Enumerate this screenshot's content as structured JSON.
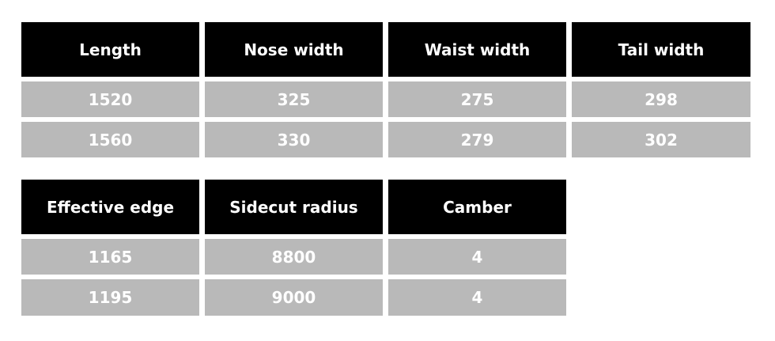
{
  "table1": {
    "headers": [
      "Length",
      "Nose width",
      "Waist width",
      "Tail width"
    ],
    "rows": [
      [
        "1520",
        "325",
        "275",
        "298"
      ],
      [
        "1560",
        "330",
        "279",
        "302"
      ]
    ]
  },
  "table2": {
    "headers": [
      "Effective edge",
      "Sidecut radius",
      "Camber"
    ],
    "rows": [
      [
        "1165",
        "8800",
        "4"
      ],
      [
        "1195",
        "9000",
        "4"
      ]
    ]
  },
  "colors": {
    "header_bg": "#000000",
    "row_bg": "#b9b9b9",
    "text": "#ffffff"
  }
}
